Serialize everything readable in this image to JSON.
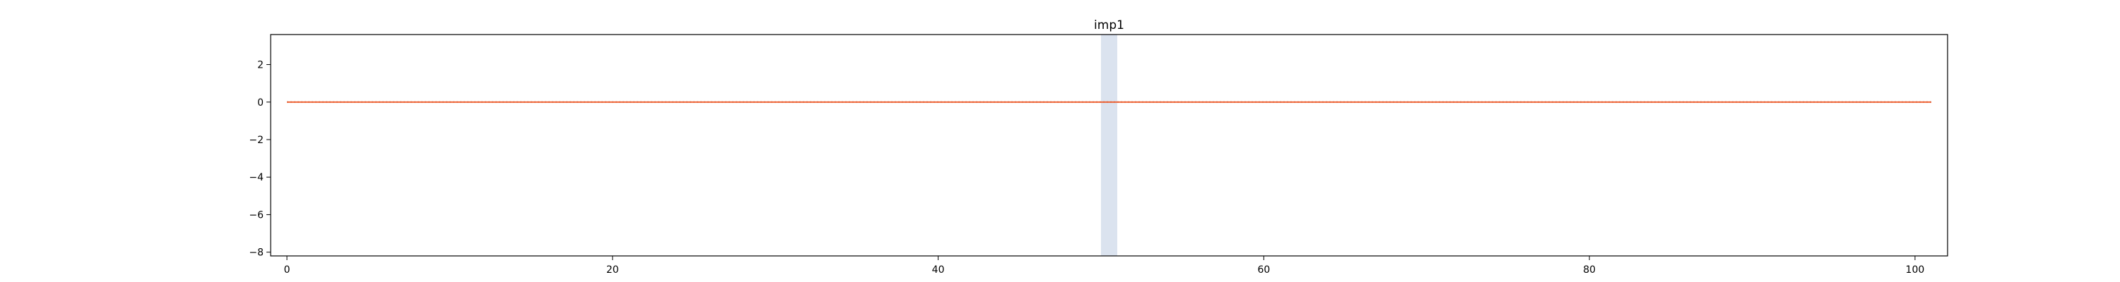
{
  "chart_data": {
    "type": "line",
    "title": "imp1",
    "xlabel": "",
    "ylabel": "",
    "xlim": [
      -1,
      102
    ],
    "ylim": [
      -8.2,
      3.6
    ],
    "xticks": [
      0,
      20,
      40,
      60,
      80,
      100
    ],
    "yticks": [
      -8,
      -6,
      -4,
      -2,
      0,
      2
    ],
    "grid": false,
    "highlight_span": {
      "x_start": 50,
      "x_end": 51,
      "color": "#dbe3ef"
    },
    "series": [
      {
        "color": "#8a8a8a",
        "style": "dotted",
        "x": [
          0,
          101
        ],
        "y": [
          0,
          0
        ]
      },
      {
        "color": "#f05a28",
        "style": "solid",
        "x": [
          0,
          101
        ],
        "y": [
          0,
          0
        ]
      }
    ]
  }
}
